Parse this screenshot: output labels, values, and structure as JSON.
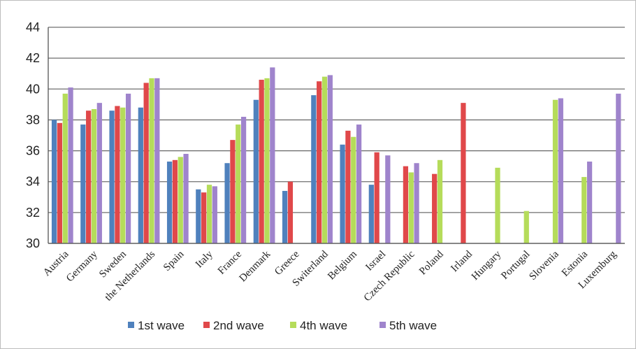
{
  "chart_data": {
    "type": "bar",
    "title": "",
    "xlabel": "",
    "ylabel": "",
    "ylim": [
      30,
      44
    ],
    "yticks": [
      30,
      32,
      34,
      36,
      38,
      40,
      42,
      44
    ],
    "grid": true,
    "legend_position": "bottom",
    "categories": [
      "Austria",
      "Germany",
      "Sweden",
      "the Netherlands",
      "Spain",
      "Italy",
      "France",
      "Denmark",
      "Greece",
      "Switerland",
      "Belgium",
      "Israel",
      "Czech Republic",
      "Poland",
      "Irland",
      "Hungary",
      "Portugal",
      "Slovenia",
      "Estonia",
      "Luxemburg"
    ],
    "series": [
      {
        "name": "1st wave",
        "color": "#4f81bd",
        "values": [
          38.0,
          37.7,
          38.6,
          38.8,
          35.3,
          33.5,
          35.2,
          39.3,
          33.4,
          39.6,
          36.4,
          33.8,
          null,
          null,
          null,
          null,
          null,
          null,
          null,
          null
        ]
      },
      {
        "name": "2nd wave",
        "color": "#e0484a",
        "values": [
          37.8,
          38.6,
          38.9,
          40.4,
          35.4,
          33.3,
          36.7,
          40.6,
          34.0,
          40.5,
          37.3,
          35.9,
          35.0,
          34.5,
          39.1,
          null,
          null,
          null,
          null,
          null
        ]
      },
      {
        "name": "4th wave",
        "color": "#b5dc5a",
        "values": [
          39.7,
          38.7,
          38.8,
          40.7,
          35.6,
          33.8,
          37.7,
          40.7,
          null,
          40.8,
          36.9,
          null,
          34.6,
          35.4,
          null,
          34.9,
          32.1,
          39.3,
          34.3,
          null
        ]
      },
      {
        "name": "5th wave",
        "color": "#9f84cc",
        "values": [
          40.1,
          39.1,
          39.7,
          40.7,
          35.8,
          33.7,
          38.2,
          41.4,
          null,
          40.9,
          37.7,
          35.7,
          35.2,
          null,
          null,
          null,
          null,
          39.4,
          35.3,
          39.7
        ]
      }
    ]
  }
}
